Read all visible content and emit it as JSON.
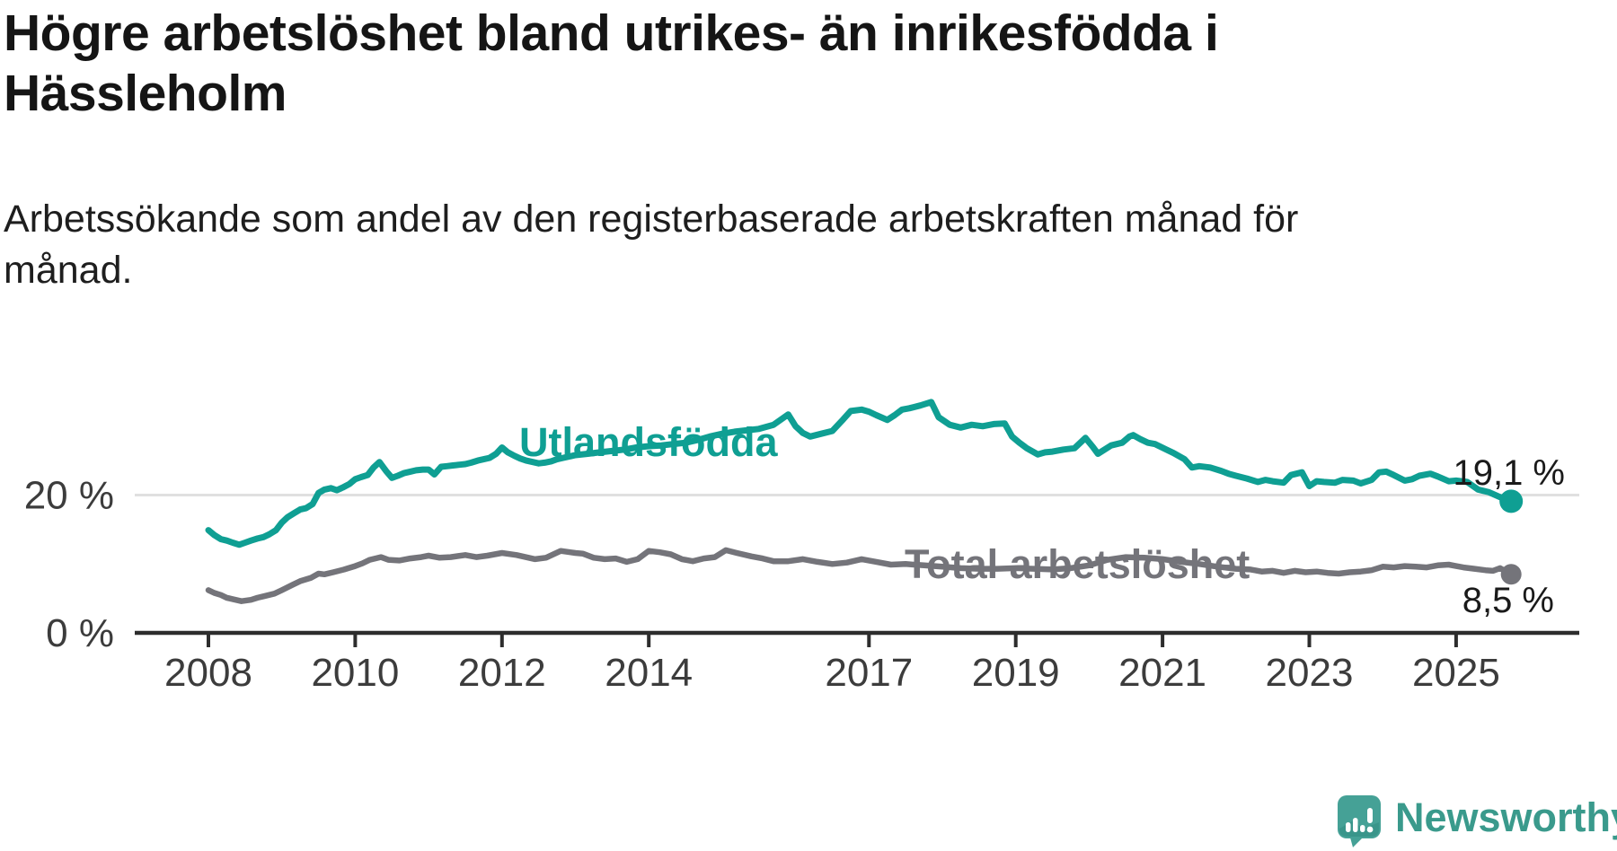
{
  "title": {
    "line1": "Högre arbetslöshet bland utrikes- än inrikesfödda i",
    "line2": "Hässleholm"
  },
  "subtitle": {
    "line1": "Arbetssökande som andel av den registerbaserade arbetskraften månad för",
    "line2": "månad."
  },
  "chart_data": {
    "type": "line",
    "title": "Högre arbetslöshet bland utrikes- än inrikesfödda i Hässleholm",
    "subtitle": "Arbetssökande som andel av den registerbaserade arbetskraften månad för månad.",
    "xlabel": "",
    "ylabel": "",
    "xlim": [
      2007.9,
      2026.7
    ],
    "ylim": [
      0,
      38
    ],
    "grid": "horizontal line at 20 only",
    "legend_position": "inline labels on lines",
    "x_axis": {
      "ticks": [
        2008,
        2010,
        2012,
        2014,
        2017,
        2019,
        2021,
        2023,
        2025
      ],
      "tick_labels": [
        "2008",
        "2010",
        "2012",
        "2014",
        "2017",
        "2019",
        "2021",
        "2023",
        "2025"
      ]
    },
    "y_axis": {
      "ticks": [
        0,
        20
      ],
      "tick_labels": [
        "0 %",
        "20 %"
      ],
      "gridline_value": 20
    },
    "series": [
      {
        "name": "Utlandsfödda",
        "color": "#0f9f93",
        "end_value": 19.1,
        "end_label": "19,1 %",
        "points": [
          [
            2008.0,
            14.9
          ],
          [
            2008.08,
            14.2
          ],
          [
            2008.17,
            13.6
          ],
          [
            2008.25,
            13.4
          ],
          [
            2008.33,
            13.1
          ],
          [
            2008.42,
            12.8
          ],
          [
            2008.5,
            13.1
          ],
          [
            2008.58,
            13.4
          ],
          [
            2008.67,
            13.7
          ],
          [
            2008.75,
            13.9
          ],
          [
            2008.83,
            14.3
          ],
          [
            2008.92,
            14.9
          ],
          [
            2009.0,
            16.0
          ],
          [
            2009.08,
            16.8
          ],
          [
            2009.17,
            17.4
          ],
          [
            2009.25,
            17.9
          ],
          [
            2009.33,
            18.1
          ],
          [
            2009.42,
            18.7
          ],
          [
            2009.5,
            20.3
          ],
          [
            2009.58,
            20.8
          ],
          [
            2009.67,
            21.0
          ],
          [
            2009.75,
            20.7
          ],
          [
            2009.83,
            21.1
          ],
          [
            2009.92,
            21.6
          ],
          [
            2010.0,
            22.3
          ],
          [
            2010.08,
            22.6
          ],
          [
            2010.17,
            22.9
          ],
          [
            2010.25,
            24.0
          ],
          [
            2010.33,
            24.8
          ],
          [
            2010.42,
            23.5
          ],
          [
            2010.5,
            22.5
          ],
          [
            2010.58,
            22.8
          ],
          [
            2010.67,
            23.2
          ],
          [
            2010.75,
            23.4
          ],
          [
            2010.83,
            23.6
          ],
          [
            2010.92,
            23.7
          ],
          [
            2011.0,
            23.7
          ],
          [
            2011.08,
            23.0
          ],
          [
            2011.17,
            24.1
          ],
          [
            2011.25,
            24.2
          ],
          [
            2011.33,
            24.3
          ],
          [
            2011.42,
            24.4
          ],
          [
            2011.5,
            24.5
          ],
          [
            2011.58,
            24.7
          ],
          [
            2011.67,
            25.0
          ],
          [
            2011.75,
            25.2
          ],
          [
            2011.83,
            25.4
          ],
          [
            2011.92,
            26.0
          ],
          [
            2012.0,
            26.9
          ],
          [
            2012.08,
            26.2
          ],
          [
            2012.17,
            25.7
          ],
          [
            2012.25,
            25.3
          ],
          [
            2012.33,
            25.0
          ],
          [
            2012.42,
            24.8
          ],
          [
            2012.5,
            24.6
          ],
          [
            2012.58,
            24.7
          ],
          [
            2012.67,
            24.9
          ],
          [
            2012.75,
            25.2
          ],
          [
            2012.83,
            25.4
          ],
          [
            2012.92,
            25.6
          ],
          [
            2013.0,
            25.8
          ],
          [
            2013.17,
            26.0
          ],
          [
            2013.33,
            26.2
          ],
          [
            2013.5,
            26.4
          ],
          [
            2013.67,
            26.6
          ],
          [
            2013.83,
            26.9
          ],
          [
            2014.0,
            27.1
          ],
          [
            2014.17,
            27.2
          ],
          [
            2014.33,
            27.4
          ],
          [
            2014.5,
            27.6
          ],
          [
            2014.67,
            28.0
          ],
          [
            2014.83,
            28.5
          ],
          [
            2015.0,
            28.9
          ],
          [
            2015.17,
            29.2
          ],
          [
            2015.33,
            29.4
          ],
          [
            2015.5,
            29.6
          ],
          [
            2015.7,
            30.2
          ],
          [
            2015.9,
            31.7
          ],
          [
            2016.0,
            30.0
          ],
          [
            2016.1,
            29.0
          ],
          [
            2016.2,
            28.5
          ],
          [
            2016.35,
            28.9
          ],
          [
            2016.5,
            29.3
          ],
          [
            2016.65,
            31.0
          ],
          [
            2016.75,
            32.2
          ],
          [
            2016.9,
            32.4
          ],
          [
            2017.0,
            32.1
          ],
          [
            2017.1,
            31.6
          ],
          [
            2017.25,
            30.9
          ],
          [
            2017.35,
            31.6
          ],
          [
            2017.45,
            32.4
          ],
          [
            2017.55,
            32.6
          ],
          [
            2017.7,
            33.0
          ],
          [
            2017.85,
            33.5
          ],
          [
            2017.95,
            31.3
          ],
          [
            2018.1,
            30.2
          ],
          [
            2018.25,
            29.8
          ],
          [
            2018.4,
            30.2
          ],
          [
            2018.55,
            30.0
          ],
          [
            2018.7,
            30.3
          ],
          [
            2018.85,
            30.4
          ],
          [
            2018.95,
            28.5
          ],
          [
            2019.05,
            27.6
          ],
          [
            2019.15,
            26.8
          ],
          [
            2019.3,
            25.9
          ],
          [
            2019.4,
            26.2
          ],
          [
            2019.5,
            26.3
          ],
          [
            2019.65,
            26.6
          ],
          [
            2019.8,
            26.8
          ],
          [
            2019.95,
            28.3
          ],
          [
            2020.05,
            27.0
          ],
          [
            2020.12,
            26.0
          ],
          [
            2020.3,
            27.2
          ],
          [
            2020.45,
            27.6
          ],
          [
            2020.55,
            28.5
          ],
          [
            2020.6,
            28.7
          ],
          [
            2020.7,
            28.1
          ],
          [
            2020.8,
            27.6
          ],
          [
            2020.9,
            27.4
          ],
          [
            2021.05,
            26.6
          ],
          [
            2021.15,
            26.1
          ],
          [
            2021.3,
            25.2
          ],
          [
            2021.4,
            24.0
          ],
          [
            2021.5,
            24.2
          ],
          [
            2021.65,
            24.0
          ],
          [
            2021.8,
            23.5
          ],
          [
            2021.9,
            23.1
          ],
          [
            2022.0,
            22.8
          ],
          [
            2022.15,
            22.4
          ],
          [
            2022.3,
            21.9
          ],
          [
            2022.4,
            22.2
          ],
          [
            2022.5,
            22.0
          ],
          [
            2022.65,
            21.8
          ],
          [
            2022.75,
            22.9
          ],
          [
            2022.9,
            23.3
          ],
          [
            2023.0,
            21.3
          ],
          [
            2023.1,
            22.0
          ],
          [
            2023.2,
            21.9
          ],
          [
            2023.35,
            21.8
          ],
          [
            2023.45,
            22.2
          ],
          [
            2023.6,
            22.1
          ],
          [
            2023.7,
            21.7
          ],
          [
            2023.85,
            22.2
          ],
          [
            2023.95,
            23.3
          ],
          [
            2024.05,
            23.4
          ],
          [
            2024.15,
            22.9
          ],
          [
            2024.3,
            22.1
          ],
          [
            2024.4,
            22.3
          ],
          [
            2024.5,
            22.8
          ],
          [
            2024.65,
            23.1
          ],
          [
            2024.75,
            22.7
          ],
          [
            2024.9,
            22.0
          ],
          [
            2025.0,
            22.1
          ],
          [
            2025.15,
            21.9
          ],
          [
            2025.3,
            20.8
          ],
          [
            2025.45,
            20.4
          ],
          [
            2025.6,
            19.7
          ],
          [
            2025.75,
            19.1
          ]
        ]
      },
      {
        "name": "Total arbetslöshet",
        "color": "#74747a",
        "end_value": 8.5,
        "end_label": "8,5 %",
        "points": [
          [
            2008.0,
            6.2
          ],
          [
            2008.08,
            5.8
          ],
          [
            2008.17,
            5.5
          ],
          [
            2008.25,
            5.1
          ],
          [
            2008.33,
            4.9
          ],
          [
            2008.45,
            4.6
          ],
          [
            2008.58,
            4.8
          ],
          [
            2008.67,
            5.1
          ],
          [
            2008.75,
            5.3
          ],
          [
            2008.9,
            5.7
          ],
          [
            2009.0,
            6.2
          ],
          [
            2009.15,
            7.0
          ],
          [
            2009.25,
            7.5
          ],
          [
            2009.4,
            8.0
          ],
          [
            2009.5,
            8.6
          ],
          [
            2009.58,
            8.5
          ],
          [
            2009.7,
            8.8
          ],
          [
            2009.85,
            9.2
          ],
          [
            2010.0,
            9.7
          ],
          [
            2010.1,
            10.1
          ],
          [
            2010.2,
            10.6
          ],
          [
            2010.35,
            11.0
          ],
          [
            2010.45,
            10.6
          ],
          [
            2010.6,
            10.5
          ],
          [
            2010.75,
            10.8
          ],
          [
            2010.9,
            11.0
          ],
          [
            2011.0,
            11.2
          ],
          [
            2011.15,
            10.9
          ],
          [
            2011.3,
            11.0
          ],
          [
            2011.5,
            11.3
          ],
          [
            2011.65,
            11.0
          ],
          [
            2011.8,
            11.2
          ],
          [
            2012.0,
            11.6
          ],
          [
            2012.2,
            11.3
          ],
          [
            2012.45,
            10.7
          ],
          [
            2012.6,
            10.9
          ],
          [
            2012.8,
            11.9
          ],
          [
            2013.0,
            11.6
          ],
          [
            2013.1,
            11.5
          ],
          [
            2013.25,
            10.9
          ],
          [
            2013.4,
            10.7
          ],
          [
            2013.55,
            10.8
          ],
          [
            2013.7,
            10.3
          ],
          [
            2013.85,
            10.7
          ],
          [
            2014.0,
            11.9
          ],
          [
            2014.15,
            11.7
          ],
          [
            2014.3,
            11.4
          ],
          [
            2014.45,
            10.7
          ],
          [
            2014.6,
            10.4
          ],
          [
            2014.75,
            10.8
          ],
          [
            2014.9,
            11.0
          ],
          [
            2015.05,
            12.0
          ],
          [
            2015.2,
            11.6
          ],
          [
            2015.4,
            11.1
          ],
          [
            2015.55,
            10.8
          ],
          [
            2015.7,
            10.4
          ],
          [
            2015.9,
            10.4
          ],
          [
            2016.1,
            10.7
          ],
          [
            2016.3,
            10.3
          ],
          [
            2016.5,
            10.0
          ],
          [
            2016.7,
            10.2
          ],
          [
            2016.9,
            10.7
          ],
          [
            2017.1,
            10.3
          ],
          [
            2017.3,
            9.9
          ],
          [
            2017.5,
            10.0
          ],
          [
            2017.75,
            9.8
          ],
          [
            2018.0,
            9.6
          ],
          [
            2018.25,
            9.4
          ],
          [
            2018.5,
            9.3
          ],
          [
            2018.75,
            9.3
          ],
          [
            2019.0,
            9.4
          ],
          [
            2019.25,
            9.3
          ],
          [
            2019.5,
            9.2
          ],
          [
            2019.75,
            9.4
          ],
          [
            2020.0,
            9.8
          ],
          [
            2020.25,
            10.6
          ],
          [
            2020.5,
            11.0
          ],
          [
            2020.75,
            10.9
          ],
          [
            2021.0,
            10.7
          ],
          [
            2021.25,
            10.3
          ],
          [
            2021.5,
            10.0
          ],
          [
            2021.75,
            9.6
          ],
          [
            2022.0,
            9.3
          ],
          [
            2022.2,
            9.2
          ],
          [
            2022.35,
            8.9
          ],
          [
            2022.5,
            9.0
          ],
          [
            2022.65,
            8.7
          ],
          [
            2022.8,
            9.0
          ],
          [
            2022.95,
            8.8
          ],
          [
            2023.1,
            8.9
          ],
          [
            2023.25,
            8.7
          ],
          [
            2023.4,
            8.6
          ],
          [
            2023.55,
            8.8
          ],
          [
            2023.7,
            8.9
          ],
          [
            2023.85,
            9.1
          ],
          [
            2024.0,
            9.6
          ],
          [
            2024.15,
            9.5
          ],
          [
            2024.3,
            9.7
          ],
          [
            2024.45,
            9.6
          ],
          [
            2024.6,
            9.5
          ],
          [
            2024.75,
            9.8
          ],
          [
            2024.9,
            9.9
          ],
          [
            2025.0,
            9.7
          ],
          [
            2025.1,
            9.5
          ],
          [
            2025.25,
            9.3
          ],
          [
            2025.4,
            9.1
          ],
          [
            2025.5,
            9.0
          ],
          [
            2025.6,
            9.4
          ],
          [
            2025.75,
            8.5
          ]
        ]
      }
    ]
  },
  "branding": {
    "logo_text": "Newsworthy",
    "logo_color": "#3a9a8c",
    "logo_icon": "speech-bubble-bar-chart-icon"
  },
  "colors": {
    "background": "#ffffff",
    "title_text": "#151515",
    "axis": "#2d2d2d",
    "tick_labels": "#3c3c3c",
    "gridline": "#e0e0e0",
    "value_labels": "#1a1a1a",
    "series_utlandsfodda": "#0f9f93",
    "series_total": "#74747a"
  }
}
